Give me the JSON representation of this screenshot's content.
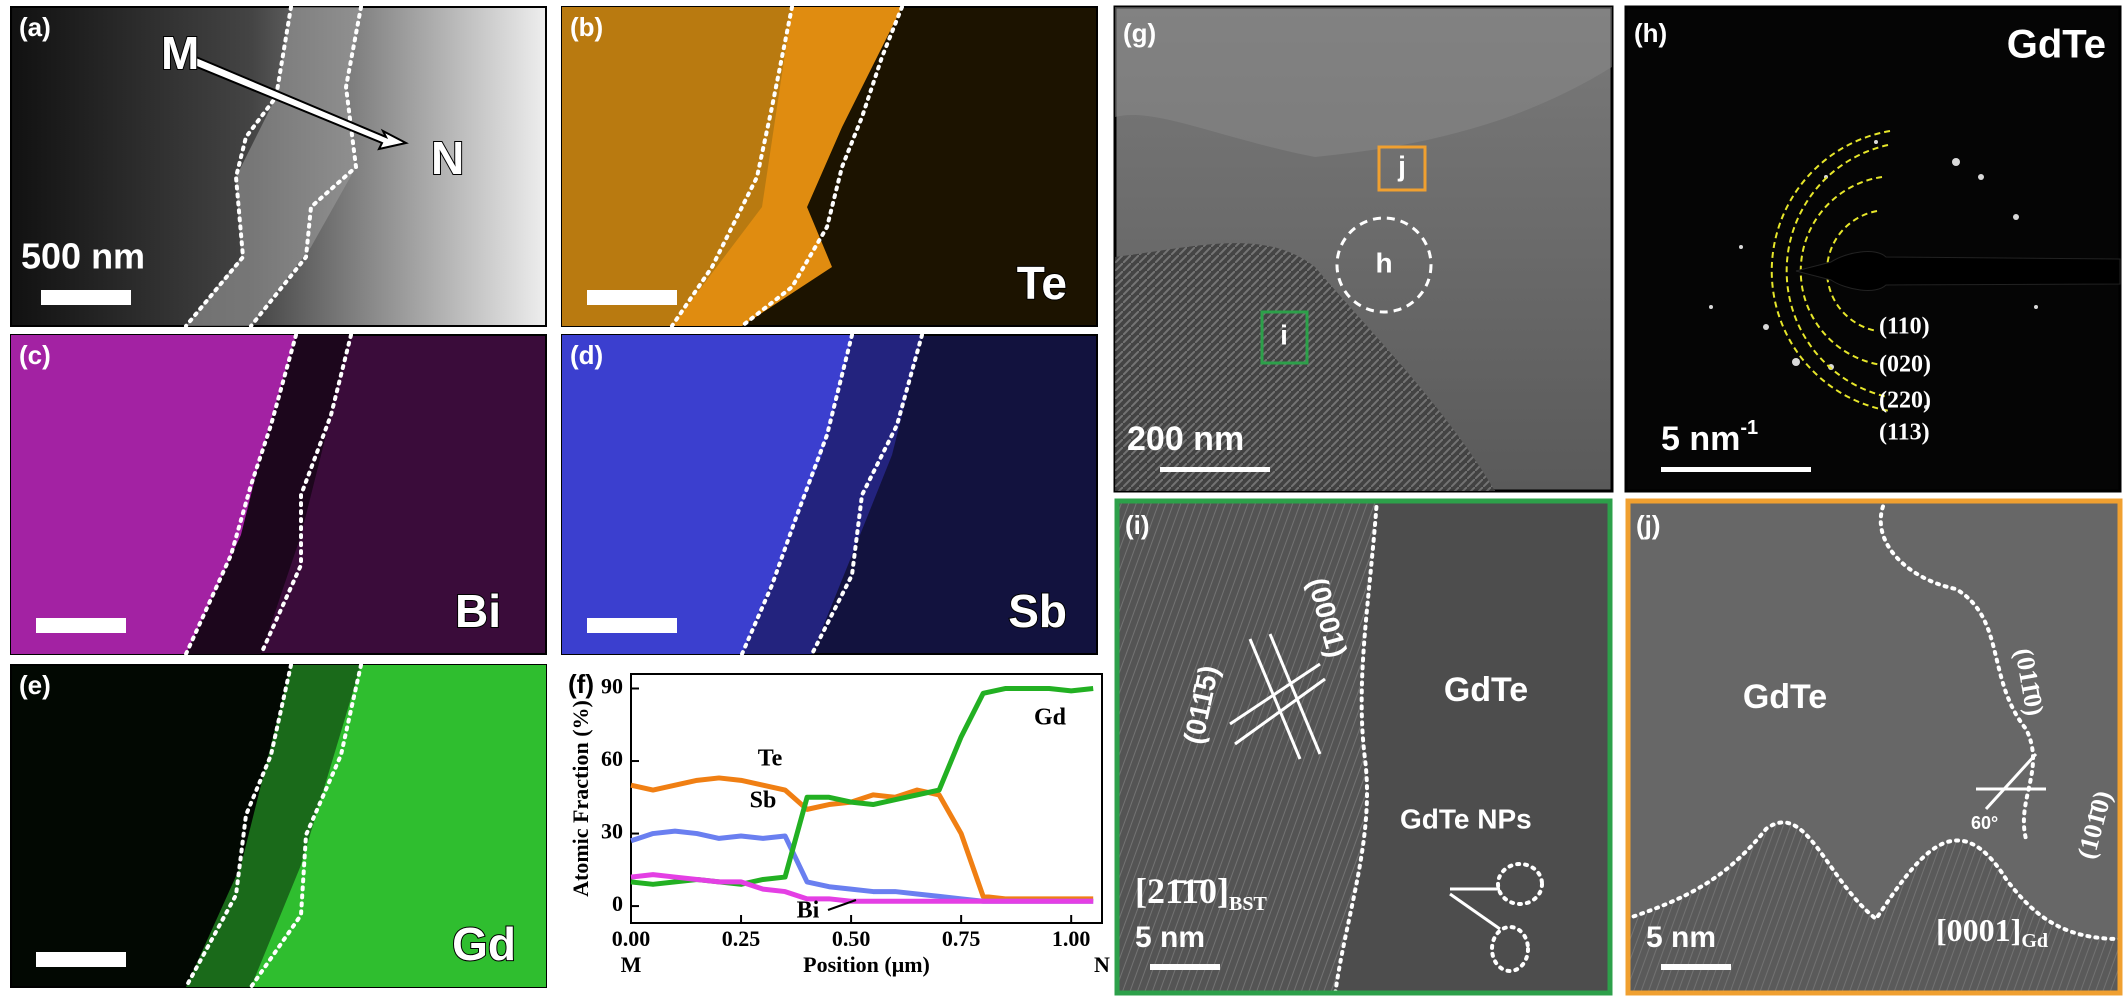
{
  "panels": {
    "a": {
      "label": "(a)",
      "start": "M",
      "end": "N",
      "scale_bar": "500 nm"
    },
    "b": {
      "label": "(b)",
      "element": "Te"
    },
    "c": {
      "label": "(c)",
      "element": "Bi"
    },
    "d": {
      "label": "(d)",
      "element": "Sb"
    },
    "e": {
      "label": "(e)",
      "element": "Gd"
    },
    "f": {
      "label": "(f)"
    },
    "g": {
      "label": "(g)",
      "regions": [
        "j",
        "h",
        "i"
      ],
      "scale_bar": "200 nm"
    },
    "h": {
      "label": "(h)",
      "phase": "GdTe",
      "rings": [
        "(110)",
        "(020)",
        "(220)",
        "(113)"
      ],
      "scale_bar": "5 nm",
      "scale_bar_sup": "-1"
    },
    "i": {
      "label": "(i)",
      "planes": [
        "(0001)",
        "(011̄5)"
      ],
      "zone_axis": "[21̄1̄0]",
      "zone_axis_sub": "BST",
      "phase": "GdTe",
      "particles": "GdTe NPs",
      "scale_bar": "5 nm"
    },
    "j": {
      "label": "(j)",
      "phase": "GdTe",
      "planes": [
        "(011̄0)",
        "(101̄0)"
      ],
      "angle": "60°",
      "zone_axis": "[0001]",
      "zone_axis_sub": "Gd",
      "scale_bar": "5 nm"
    }
  },
  "chart_data": {
    "type": "line",
    "x_label": "Position (μm)",
    "y_label": "Atomic Fraction (%)",
    "x_end_labels": [
      "M",
      "N"
    ],
    "x": [
      0,
      0.05,
      0.1,
      0.15,
      0.2,
      0.25,
      0.3,
      0.35,
      0.4,
      0.45,
      0.5,
      0.55,
      0.6,
      0.65,
      0.7,
      0.75,
      0.8,
      0.85,
      0.9,
      0.95,
      1.0,
      1.05
    ],
    "xlim": [
      0,
      1.07
    ],
    "xticks": [
      {
        "value": 0,
        "label": "0.00"
      },
      {
        "value": 0.25,
        "label": "0.25"
      },
      {
        "value": 0.5,
        "label": "0.50"
      },
      {
        "value": 0.75,
        "label": "0.75"
      },
      {
        "value": 1,
        "label": "1.00"
      }
    ],
    "ylim": [
      -7,
      96
    ],
    "yticks": [
      0,
      30,
      60,
      90
    ],
    "series": [
      {
        "name": "Te",
        "color": "#f07f13",
        "values": [
          50,
          48,
          50,
          52,
          53,
          52,
          50,
          48,
          40,
          42,
          43,
          46,
          45,
          48,
          46,
          30,
          4,
          3,
          3,
          3,
          3,
          3
        ]
      },
      {
        "name": "Sb",
        "color": "#6a7ff0",
        "values": [
          27,
          30,
          31,
          30,
          28,
          29,
          28,
          29,
          10,
          8,
          7,
          6,
          6,
          5,
          4,
          3,
          2,
          2,
          2,
          2,
          2,
          2
        ]
      },
      {
        "name": "Gd",
        "color": "#22b022",
        "values": [
          10,
          9,
          10,
          11,
          10,
          9,
          11,
          12,
          45,
          45,
          43,
          42,
          44,
          46,
          48,
          70,
          88,
          90,
          90,
          90,
          89,
          90
        ]
      },
      {
        "name": "Bi",
        "color": "#e43fe4",
        "values": [
          12,
          13,
          12,
          11,
          10,
          10,
          7,
          6,
          3,
          3,
          2,
          2,
          2,
          2,
          2,
          2,
          2,
          2,
          2,
          2,
          2,
          2
        ]
      }
    ]
  }
}
